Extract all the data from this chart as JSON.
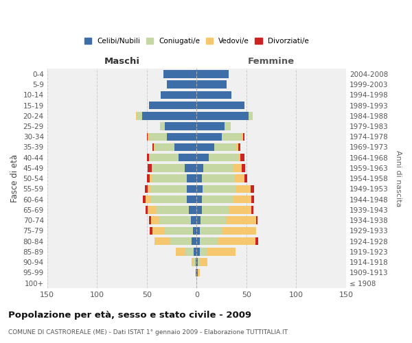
{
  "age_groups": [
    "0-4",
    "5-9",
    "10-14",
    "15-19",
    "20-24",
    "25-29",
    "30-34",
    "35-39",
    "40-44",
    "45-49",
    "50-54",
    "55-59",
    "60-64",
    "65-69",
    "70-74",
    "75-79",
    "80-84",
    "85-89",
    "90-94",
    "95-99",
    "100+"
  ],
  "birth_years": [
    "2004-2008",
    "1999-2003",
    "1994-1998",
    "1989-1993",
    "1984-1988",
    "1979-1983",
    "1974-1978",
    "1969-1973",
    "1964-1968",
    "1959-1963",
    "1954-1958",
    "1949-1953",
    "1944-1948",
    "1939-1943",
    "1934-1938",
    "1929-1933",
    "1924-1928",
    "1919-1923",
    "1914-1918",
    "1909-1913",
    "≤ 1908"
  ],
  "male": {
    "celibi": [
      33,
      30,
      36,
      48,
      55,
      32,
      30,
      22,
      18,
      12,
      10,
      10,
      10,
      8,
      6,
      4,
      5,
      3,
      1,
      1,
      0
    ],
    "coniugati": [
      0,
      0,
      0,
      0,
      5,
      5,
      18,
      20,
      30,
      32,
      35,
      36,
      36,
      33,
      32,
      28,
      22,
      8,
      2,
      0,
      0
    ],
    "vedovi": [
      0,
      0,
      0,
      0,
      1,
      0,
      1,
      1,
      0,
      1,
      2,
      3,
      5,
      8,
      8,
      12,
      15,
      10,
      2,
      0,
      0
    ],
    "divorziati": [
      0,
      0,
      0,
      0,
      0,
      0,
      1,
      1,
      2,
      4,
      3,
      3,
      3,
      2,
      2,
      3,
      0,
      0,
      0,
      0,
      0
    ]
  },
  "female": {
    "nubili": [
      32,
      30,
      35,
      48,
      52,
      28,
      25,
      18,
      12,
      7,
      5,
      6,
      5,
      5,
      4,
      3,
      3,
      3,
      1,
      1,
      0
    ],
    "coniugate": [
      0,
      0,
      0,
      0,
      4,
      6,
      20,
      22,
      30,
      30,
      33,
      33,
      32,
      28,
      26,
      22,
      18,
      8,
      2,
      0,
      0
    ],
    "vedove": [
      0,
      0,
      0,
      0,
      0,
      0,
      2,
      2,
      2,
      8,
      10,
      15,
      18,
      22,
      30,
      35,
      38,
      28,
      8,
      2,
      0
    ],
    "divorziate": [
      0,
      0,
      0,
      0,
      0,
      0,
      1,
      2,
      4,
      4,
      3,
      4,
      3,
      2,
      1,
      0,
      3,
      0,
      0,
      0,
      0
    ]
  },
  "color_celibi": "#3d6ea8",
  "color_coniugati": "#c5d8a4",
  "color_vedovi": "#f5c76e",
  "color_divorziati": "#cc2222",
  "xlim": 150,
  "title": "Popolazione per età, sesso e stato civile - 2009",
  "subtitle": "COMUNE DI CASTROREALE (ME) - Dati ISTAT 1° gennaio 2009 - Elaborazione TUTTITALIA.IT",
  "ylabel": "Fasce di età",
  "ylabel_right": "Anni di nascita",
  "xlabel_left": "Maschi",
  "xlabel_right": "Femmine",
  "bg_color": "#f0f0f0",
  "grid_color": "#cccccc"
}
